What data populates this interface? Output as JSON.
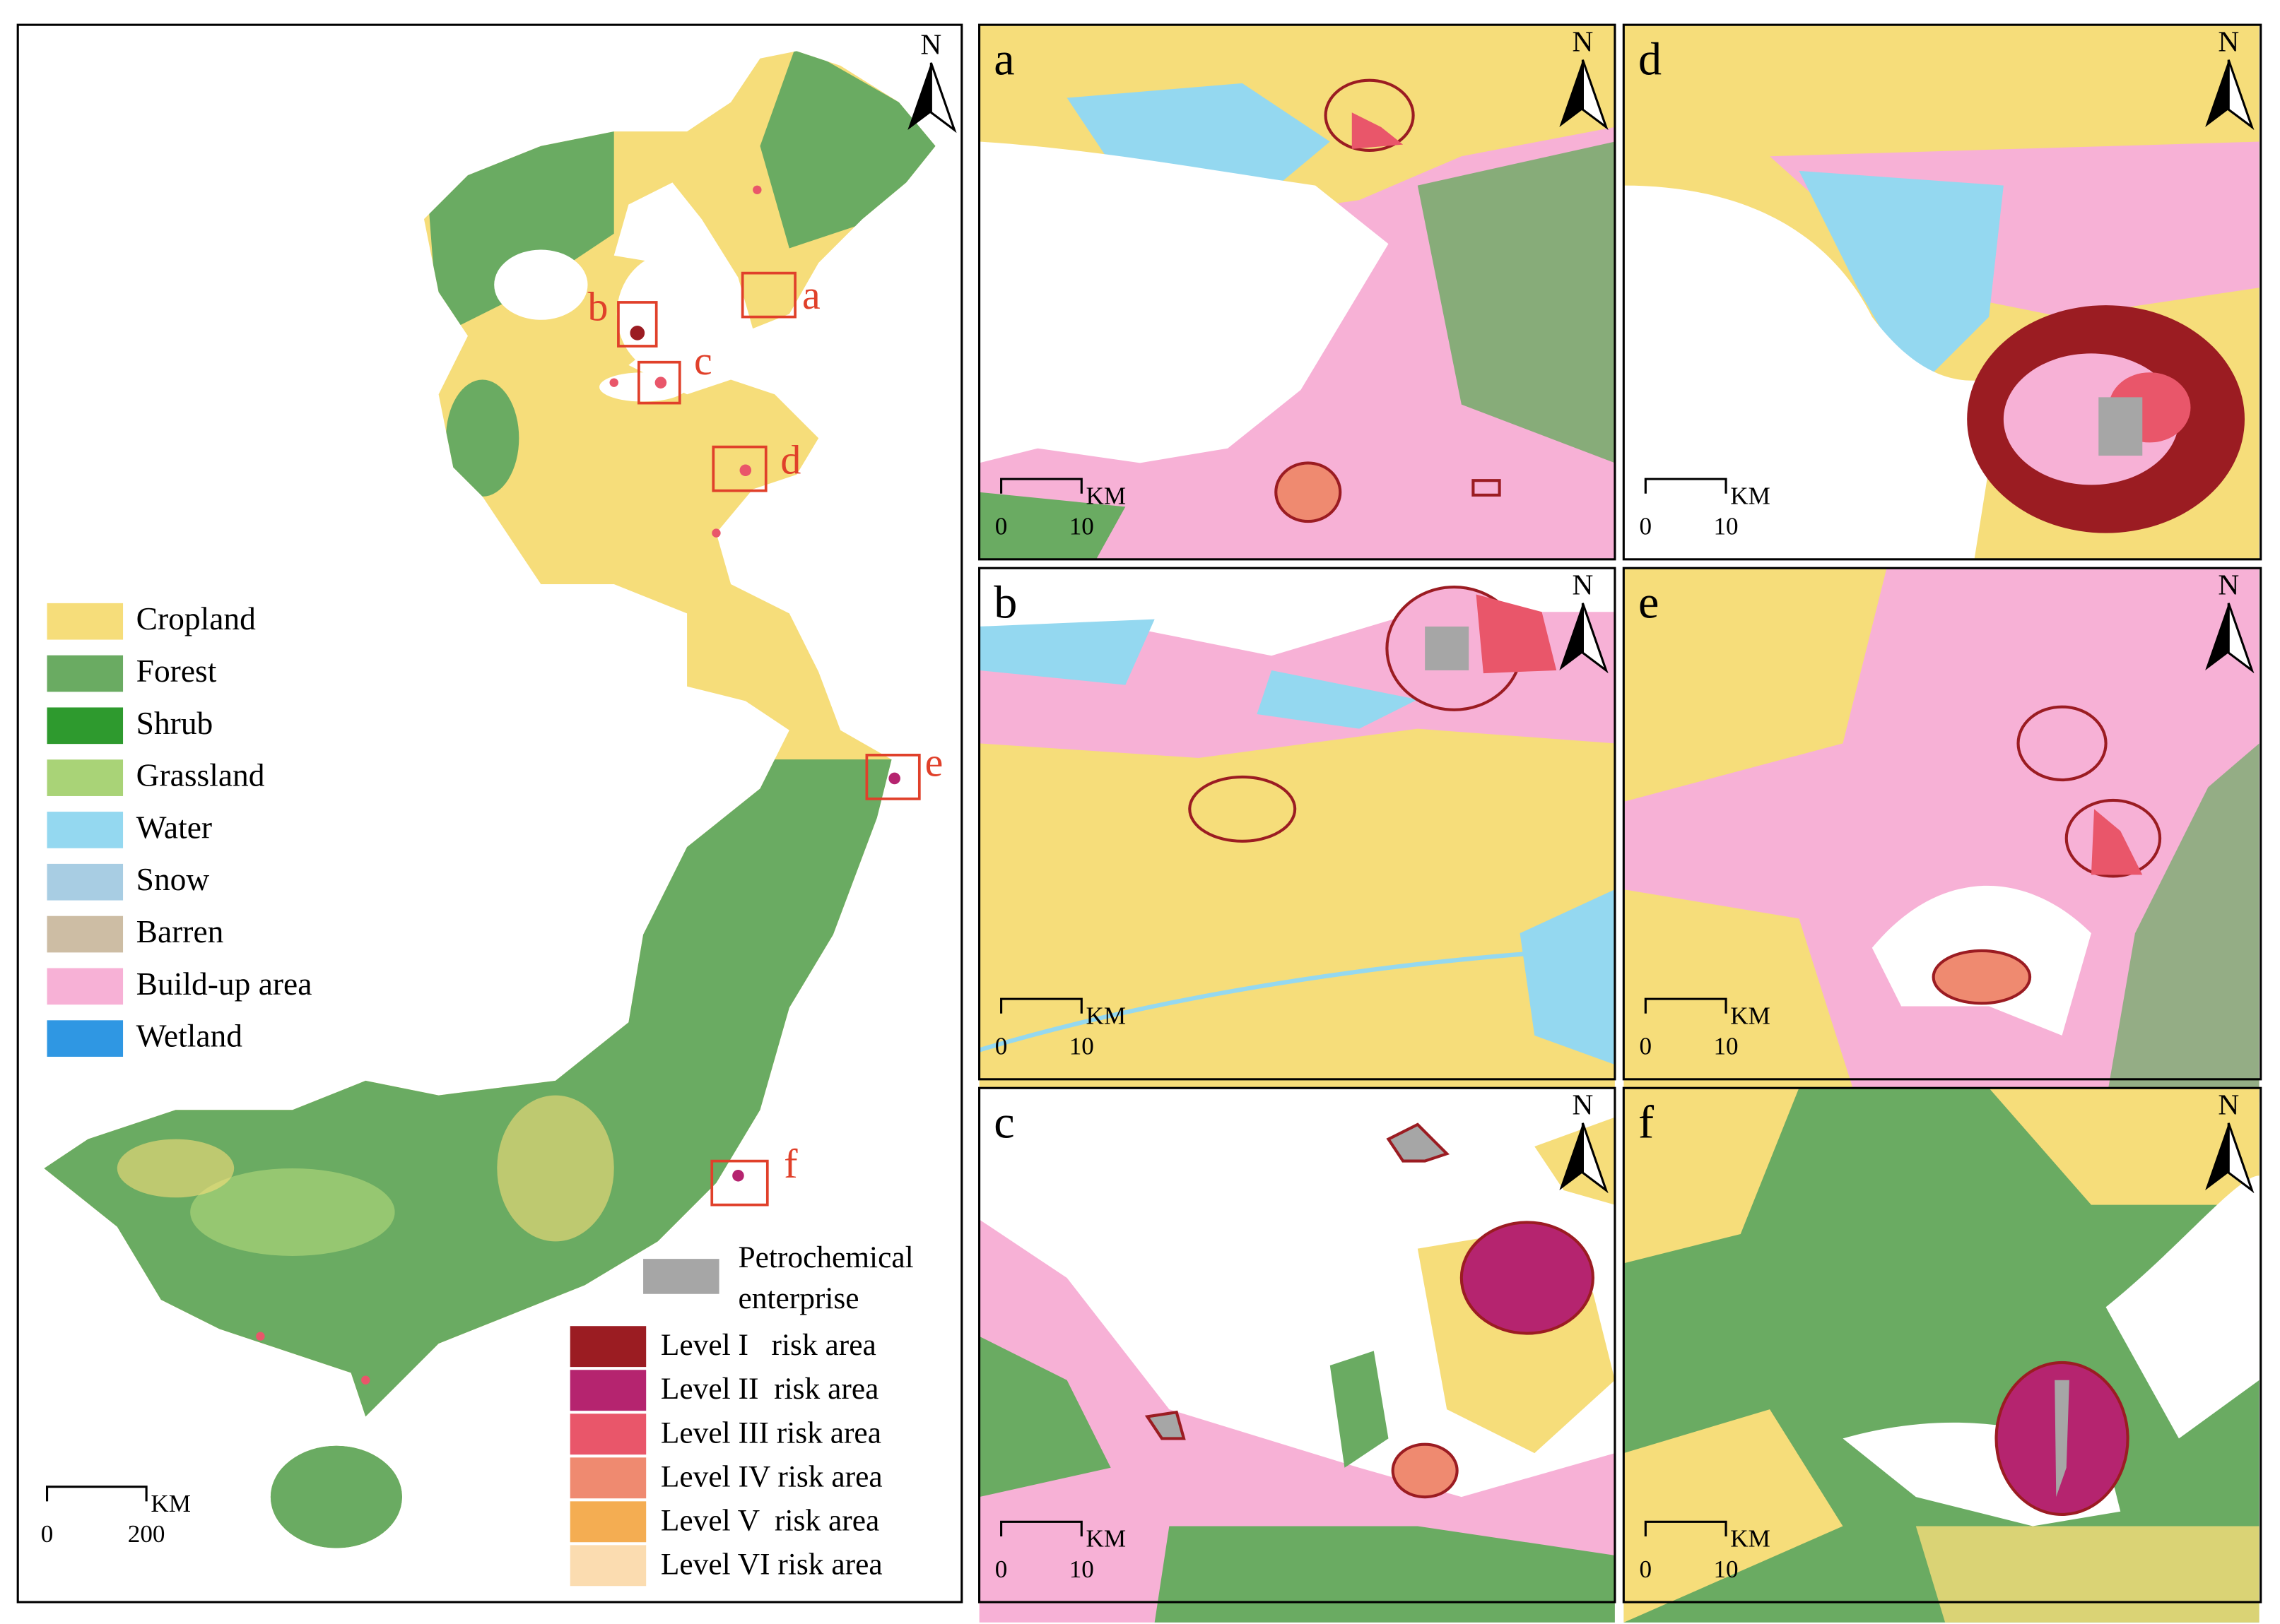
{
  "main_map": {
    "north": "N",
    "legend": [
      {
        "label": "Cropland",
        "color": "#f6dd7a"
      },
      {
        "label": "Forest",
        "color": "#6aab62"
      },
      {
        "label": "Shrub",
        "color": "#2e9a2e"
      },
      {
        "label": "Grassland",
        "color": "#a9d377"
      },
      {
        "label": "Water",
        "color": "#94d8f0"
      },
      {
        "label": "Snow",
        "color": "#a8cde3"
      },
      {
        "label": "Barren",
        "color": "#cdbda4"
      },
      {
        "label": "Build-up area",
        "color": "#f7b1d6"
      },
      {
        "label": "Wetland",
        "color": "#2f97e3"
      }
    ],
    "scale_bar": {
      "unit": "KM",
      "ticks": [
        0,
        200
      ]
    },
    "inset_labels": [
      "a",
      "b",
      "c",
      "d",
      "e",
      "f"
    ]
  },
  "risk_legend": {
    "enterprise": {
      "label": [
        "Petrochemical",
        "enterprise"
      ],
      "color": "#a6a6a6"
    },
    "levels": [
      {
        "label": "Level I   risk area",
        "color": "#9b1c22"
      },
      {
        "label": "Level II  risk area",
        "color": "#b5246f"
      },
      {
        "label": "Level III risk area",
        "color": "#e9566a"
      },
      {
        "label": "Level IV risk area",
        "color": "#ef8a70"
      },
      {
        "label": "Level V  risk area",
        "color": "#f4ad52"
      },
      {
        "label": "Level VI risk area",
        "color": "#fbdcb0"
      }
    ]
  },
  "panels": [
    {
      "label": "a",
      "north": "N",
      "scale_bar": {
        "unit": "KM",
        "ticks": [
          0,
          10
        ]
      }
    },
    {
      "label": "b",
      "north": "N",
      "scale_bar": {
        "unit": "KM",
        "ticks": [
          0,
          10
        ]
      }
    },
    {
      "label": "c",
      "north": "N",
      "scale_bar": {
        "unit": "KM",
        "ticks": [
          0,
          10
        ]
      }
    },
    {
      "label": "d",
      "north": "N",
      "scale_bar": {
        "unit": "KM",
        "ticks": [
          0,
          10
        ]
      }
    },
    {
      "label": "e",
      "north": "N",
      "scale_bar": {
        "unit": "KM",
        "ticks": [
          0,
          10
        ]
      }
    },
    {
      "label": "f",
      "north": "N",
      "scale_bar": {
        "unit": "KM",
        "ticks": [
          0,
          10
        ]
      }
    }
  ]
}
